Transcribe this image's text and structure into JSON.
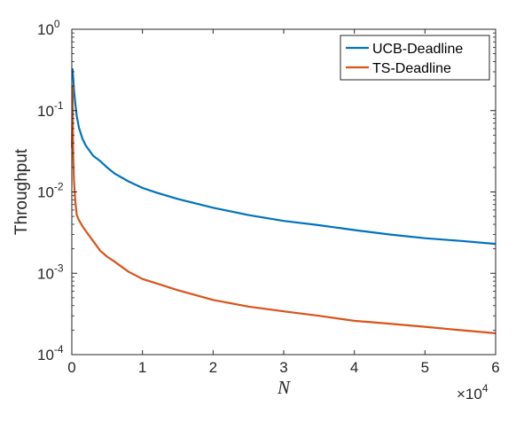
{
  "chart_data": {
    "type": "line",
    "xlabel": "N",
    "ylabel": "Throughput",
    "xscale": "linear",
    "yscale": "log",
    "xlim": [
      0,
      60000
    ],
    "ylim": [
      0.0001,
      1
    ],
    "x_ticks": [
      {
        "value": 0,
        "label": "0"
      },
      {
        "value": 10000,
        "label": "1"
      },
      {
        "value": 20000,
        "label": "2"
      },
      {
        "value": 30000,
        "label": "3"
      },
      {
        "value": 40000,
        "label": "4"
      },
      {
        "value": 50000,
        "label": "5"
      },
      {
        "value": 60000,
        "label": "6"
      }
    ],
    "x_multiplier": {
      "base": "×10",
      "exponent": "4"
    },
    "y_ticks": [
      {
        "value": 0.0001,
        "base": "10",
        "exponent": "-4"
      },
      {
        "value": 0.001,
        "base": "10",
        "exponent": "-3"
      },
      {
        "value": 0.01,
        "base": "10",
        "exponent": "-2"
      },
      {
        "value": 0.1,
        "base": "10",
        "exponent": "-1"
      },
      {
        "value": 1,
        "base": "10",
        "exponent": "0"
      }
    ],
    "grid": false,
    "legend_position": "top-right",
    "series": [
      {
        "name": "UCB-Deadline",
        "color": "#0072BD",
        "x": [
          100,
          200,
          300,
          500,
          700,
          1000,
          1500,
          2000,
          3000,
          4000,
          5000,
          6000,
          8000,
          10000,
          12000,
          15000,
          20000,
          25000,
          30000,
          35000,
          40000,
          45000,
          50000,
          55000,
          60000
        ],
        "y": [
          0.33,
          0.25,
          0.18,
          0.12,
          0.085,
          0.062,
          0.045,
          0.037,
          0.028,
          0.024,
          0.02,
          0.017,
          0.0135,
          0.0112,
          0.0098,
          0.0082,
          0.0064,
          0.0052,
          0.0044,
          0.0039,
          0.0034,
          0.003,
          0.0027,
          0.0025,
          0.0023
        ]
      },
      {
        "name": "TS-Deadline",
        "color": "#D95319",
        "x": [
          30,
          60,
          100,
          150,
          200,
          300,
          500,
          700,
          1000,
          1500,
          2000,
          3000,
          4000,
          5000,
          6000,
          8000,
          10000,
          12000,
          15000,
          20000,
          25000,
          30000,
          35000,
          40000,
          45000,
          50000,
          55000,
          60000
        ],
        "y": [
          0.035,
          0.07,
          0.2,
          0.06,
          0.028,
          0.014,
          0.0075,
          0.0052,
          0.0045,
          0.0038,
          0.0033,
          0.0025,
          0.0019,
          0.0016,
          0.0014,
          0.00105,
          0.00085,
          0.00075,
          0.00062,
          0.00047,
          0.00039,
          0.00034,
          0.0003,
          0.00026,
          0.00024,
          0.00022,
          0.0002,
          0.000183
        ]
      }
    ]
  }
}
